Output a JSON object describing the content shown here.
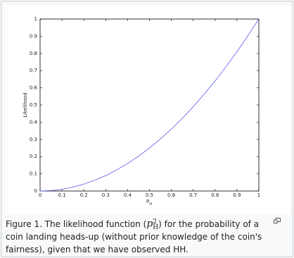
{
  "chart_data": {
    "type": "line",
    "x": [
      0,
      0.05,
      0.1,
      0.15,
      0.2,
      0.25,
      0.3,
      0.35,
      0.4,
      0.45,
      0.5,
      0.55,
      0.6,
      0.65,
      0.7,
      0.75,
      0.8,
      0.85,
      0.9,
      0.95,
      1
    ],
    "series": [
      {
        "color": "#6b6bf0",
        "values": [
          0,
          0.003,
          0.01,
          0.023,
          0.04,
          0.063,
          0.09,
          0.123,
          0.16,
          0.203,
          0.25,
          0.303,
          0.36,
          0.423,
          0.49,
          0.563,
          0.64,
          0.723,
          0.81,
          0.903,
          1
        ]
      }
    ],
    "xlim": [
      0,
      1
    ],
    "ylim": [
      0,
      1
    ],
    "xticks": [
      0,
      0.1,
      0.2,
      0.3,
      0.4,
      0.5,
      0.6,
      0.7,
      0.8,
      0.9,
      1
    ],
    "yticks": [
      0,
      0.1,
      0.2,
      0.3,
      0.4,
      0.5,
      0.6,
      0.7,
      0.8,
      0.9,
      1
    ],
    "xlabel": "P",
    "xlabel_subscript": "H",
    "ylabel": "Likelihood",
    "grid": false
  },
  "caption": {
    "before": "Figure 1.  The likelihood function (",
    "formula_base": "p",
    "formula_sup": "2",
    "formula_sub": "H",
    "after": ") for the probability of a coin landing heads-up (without prior knowledge of the coin's fairness), given that we have observed HH."
  }
}
